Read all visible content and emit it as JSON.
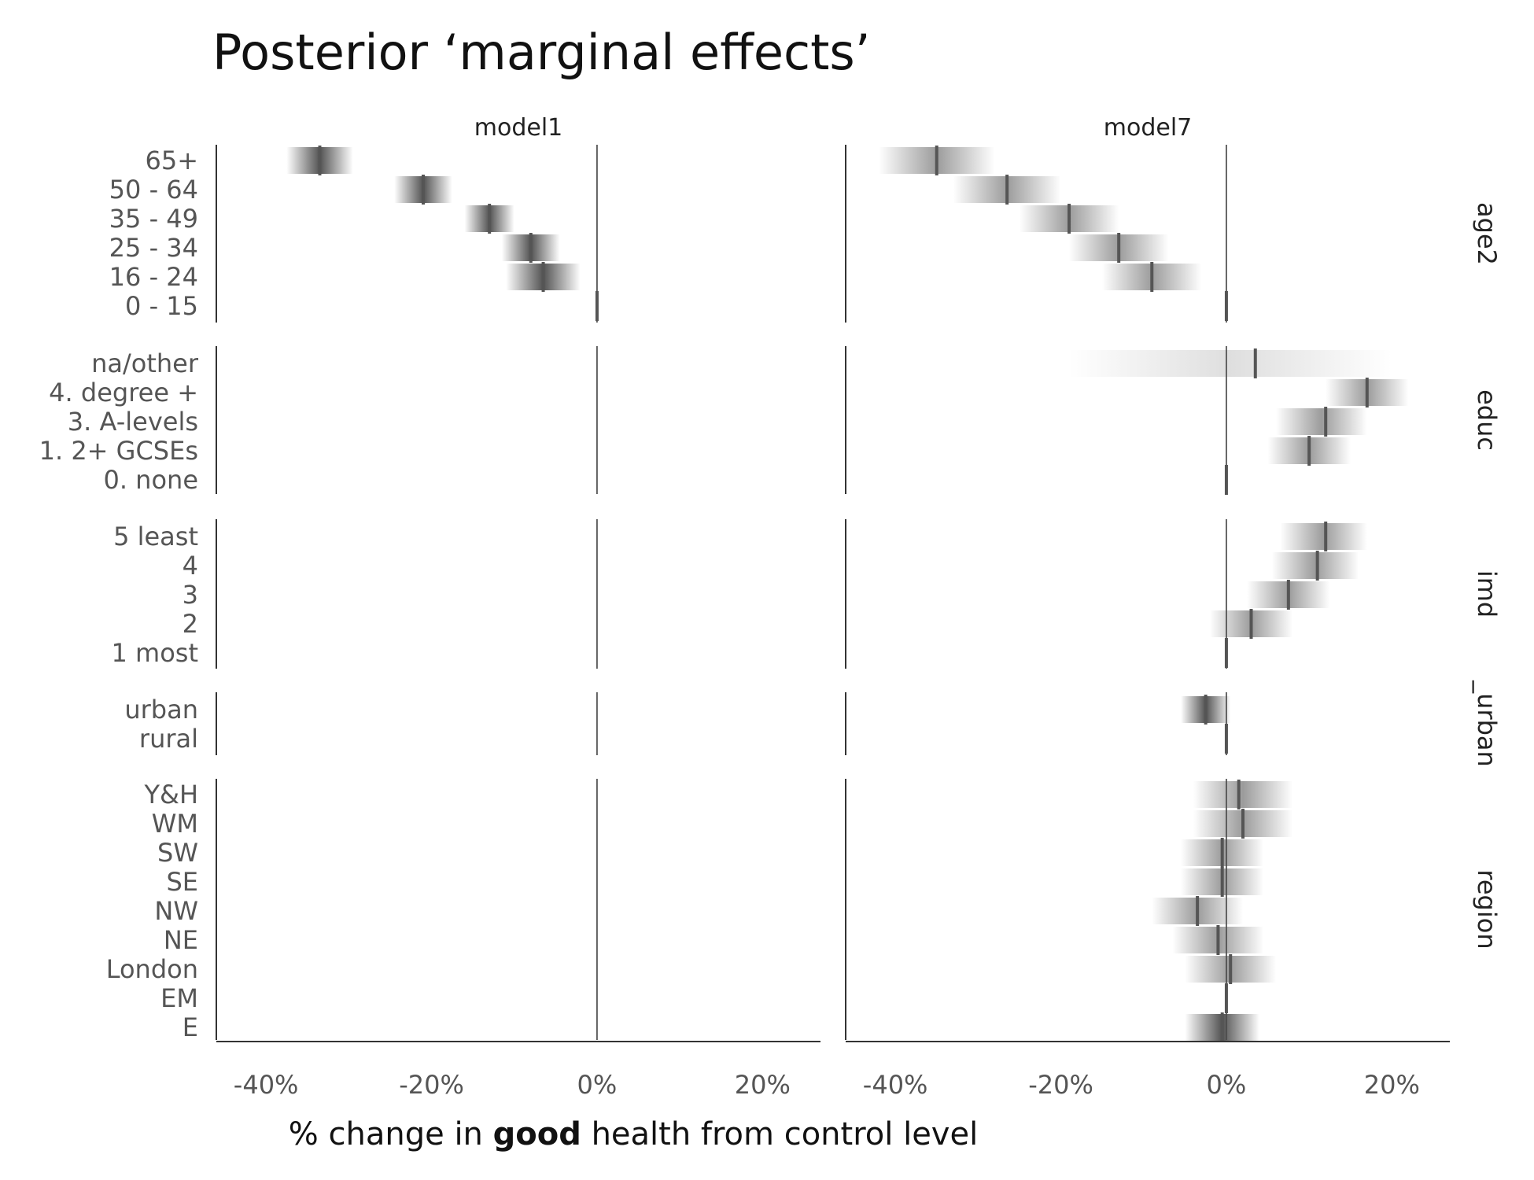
{
  "title": "Posterior ‘marginal effects’",
  "xlabel_parts": [
    {
      "text": "% change in ",
      "bold": false
    },
    {
      "text": "good",
      "bold": true
    },
    {
      "text": " health from control level",
      "bold": false
    }
  ],
  "chart_data": {
    "type": "interval",
    "title": "Posterior ‘marginal effects’",
    "xlabel": "% change in good health from control level",
    "xlim": [
      -46,
      27
    ],
    "xticks": [
      -40,
      -20,
      0,
      20
    ],
    "xtick_labels": [
      "-40%",
      "-20%",
      "0%",
      "20%"
    ],
    "panels": [
      "model1",
      "model7"
    ],
    "groups": [
      {
        "name": "age2",
        "levels": [
          "65+",
          "50 - 64",
          "35 - 49",
          "25 - 34",
          "16 - 24",
          "0 - 15"
        ]
      },
      {
        "name": "educ",
        "levels": [
          "na/other",
          "4. degree +",
          "3. A-levels",
          "1. 2+ GCSEs",
          "0. none"
        ]
      },
      {
        "name": "imd",
        "levels": [
          "5 least",
          "4",
          "3",
          "2",
          "1 most"
        ]
      },
      {
        "name": "_urban",
        "levels": [
          "urban",
          "rural"
        ]
      },
      {
        "name": "region",
        "levels": [
          "Y&H",
          "WM",
          "SW",
          "SE",
          "NW",
          "NE",
          "London",
          "EM",
          "E"
        ]
      }
    ],
    "series": [
      {
        "name": "model1",
        "estimates": {
          "age2": [
            {
              "level": "65+",
              "mean": -33.5,
              "lo": -37.5,
              "hi": -29.5
            },
            {
              "level": "50 - 64",
              "mean": -21.0,
              "lo": -24.5,
              "hi": -17.5
            },
            {
              "level": "35 - 49",
              "mean": -13.0,
              "lo": -16.0,
              "hi": -10.0
            },
            {
              "level": "25 - 34",
              "mean": -8.0,
              "lo": -11.5,
              "hi": -4.5
            },
            {
              "level": "16 - 24",
              "mean": -6.5,
              "lo": -11.0,
              "hi": -2.0
            },
            {
              "level": "0 - 15",
              "mean": 0,
              "lo": 0,
              "hi": 0
            }
          ]
        }
      },
      {
        "name": "model7",
        "estimates": {
          "age2": [
            {
              "level": "65+",
              "mean": -35.0,
              "lo": -42.0,
              "hi": -28.0
            },
            {
              "level": "50 - 64",
              "mean": -26.5,
              "lo": -33.0,
              "hi": -20.0
            },
            {
              "level": "35 - 49",
              "mean": -19.0,
              "lo": -25.0,
              "hi": -13.0
            },
            {
              "level": "25 - 34",
              "mean": -13.0,
              "lo": -19.0,
              "hi": -7.0
            },
            {
              "level": "16 - 24",
              "mean": -9.0,
              "lo": -15.0,
              "hi": -3.0
            },
            {
              "level": "0 - 15",
              "mean": 0,
              "lo": 0,
              "hi": 0
            }
          ],
          "educ": [
            {
              "level": "na/other",
              "mean": 3.5,
              "lo": -19.0,
              "hi": 20.0
            },
            {
              "level": "4. degree +",
              "mean": 17.0,
              "lo": 12.0,
              "hi": 22.0
            },
            {
              "level": "3. A-levels",
              "mean": 12.0,
              "lo": 6.0,
              "hi": 17.0
            },
            {
              "level": "1. 2+ GCSEs",
              "mean": 10.0,
              "lo": 5.0,
              "hi": 15.0
            },
            {
              "level": "0. none",
              "mean": 0,
              "lo": 0,
              "hi": 0
            }
          ],
          "imd": [
            {
              "level": "5 least",
              "mean": 12.0,
              "lo": 6.5,
              "hi": 17.0
            },
            {
              "level": "4",
              "mean": 11.0,
              "lo": 5.5,
              "hi": 16.0
            },
            {
              "level": "3",
              "mean": 7.5,
              "lo": 2.5,
              "hi": 12.5
            },
            {
              "level": "2",
              "mean": 3.0,
              "lo": -2.0,
              "hi": 8.0
            },
            {
              "level": "1 most",
              "mean": 0,
              "lo": 0,
              "hi": 0
            }
          ],
          "_urban": [
            {
              "level": "urban",
              "mean": -2.5,
              "lo": -5.5,
              "hi": 0.5
            },
            {
              "level": "rural",
              "mean": 0,
              "lo": 0,
              "hi": 0
            }
          ],
          "region": [
            {
              "level": "Y&H",
              "mean": 1.5,
              "lo": -4.0,
              "hi": 8.0
            },
            {
              "level": "WM",
              "mean": 2.0,
              "lo": -4.0,
              "hi": 8.0
            },
            {
              "level": "SW",
              "mean": -0.5,
              "lo": -5.5,
              "hi": 4.5
            },
            {
              "level": "SE",
              "mean": -0.5,
              "lo": -5.5,
              "hi": 4.5
            },
            {
              "level": "NW",
              "mean": -3.5,
              "lo": -9.0,
              "hi": 2.0
            },
            {
              "level": "NE",
              "mean": -1.0,
              "lo": -6.5,
              "hi": 4.5
            },
            {
              "level": "London",
              "mean": 0.5,
              "lo": -5.0,
              "hi": 6.0
            },
            {
              "level": "EM",
              "mean": 0,
              "lo": 0,
              "hi": 0
            },
            {
              "level": "E",
              "mean": -0.5,
              "lo": -5.0,
              "hi": 4.0
            }
          ]
        }
      }
    ],
    "grid": false,
    "legend": "none",
    "colors": {
      "mark": "#555555",
      "shade": "#4a4a4a",
      "axis": "#333333",
      "text": "#555555"
    }
  }
}
